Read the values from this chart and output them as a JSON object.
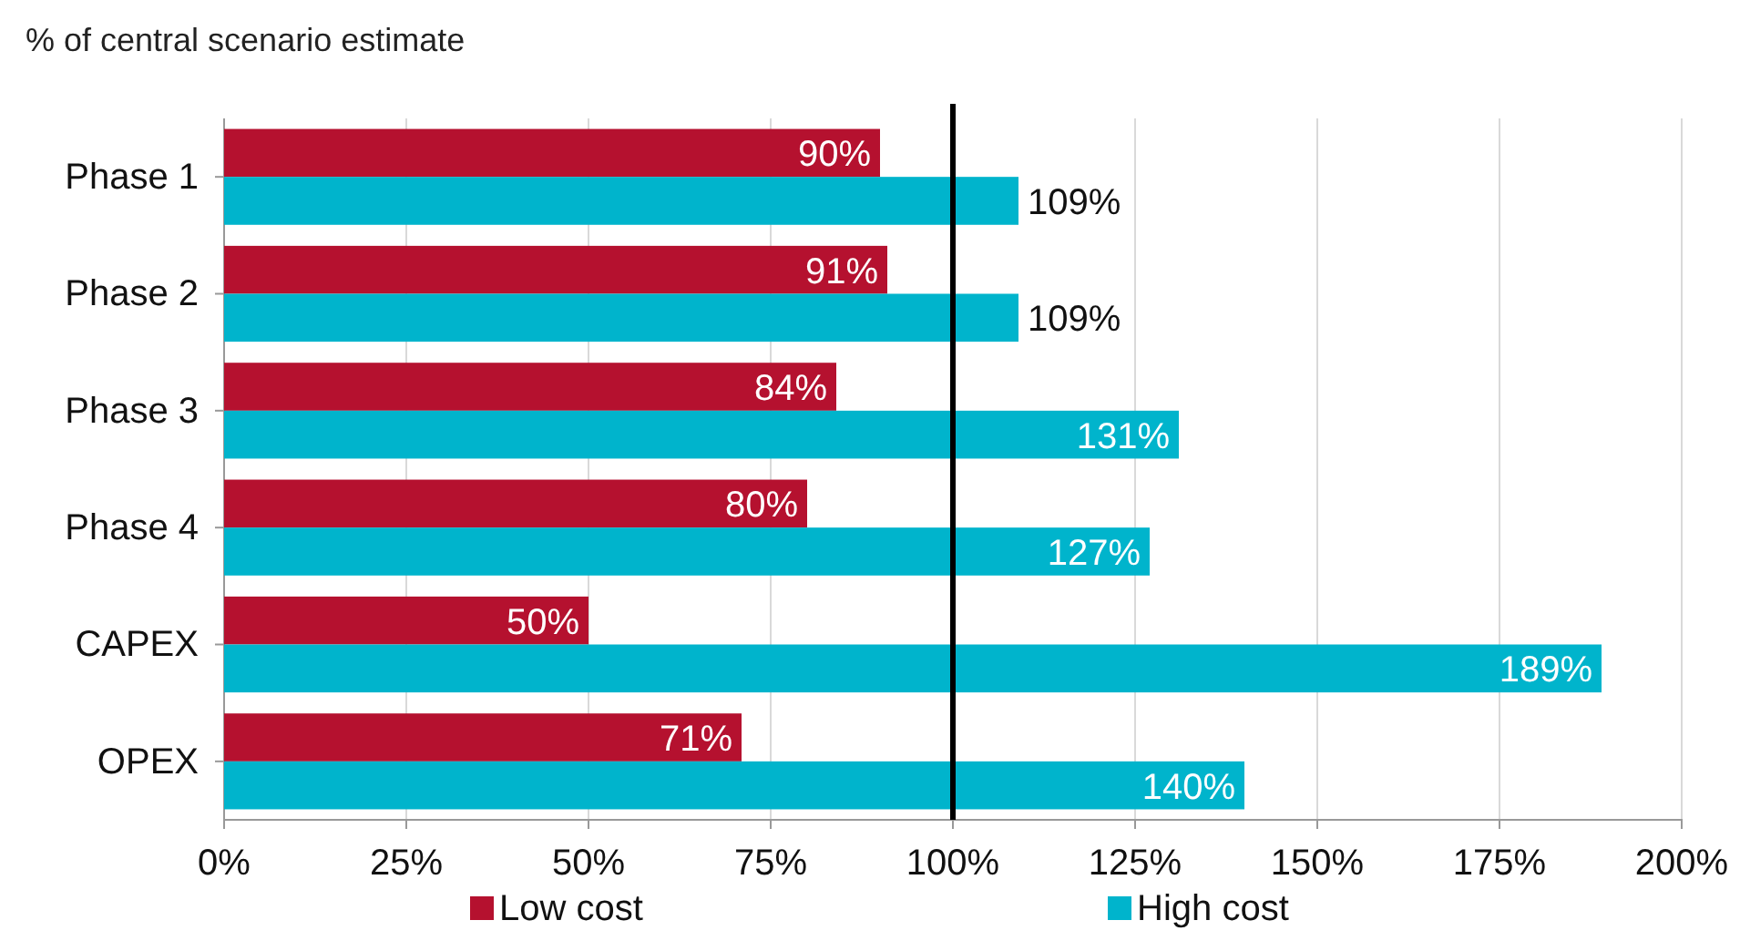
{
  "chart_data": {
    "type": "bar",
    "orientation": "horizontal",
    "ylabel": "% of central scenario estimate",
    "categories": [
      "Phase 1",
      "Phase 2",
      "Phase 3",
      "Phase 4",
      "CAPEX",
      "OPEX"
    ],
    "series": [
      {
        "name": "Low cost",
        "color": "#b5112f",
        "values": [
          90,
          91,
          84,
          80,
          50,
          71
        ],
        "value_labels": [
          "90%",
          "91%",
          "84%",
          "80%",
          "50%",
          "71%"
        ]
      },
      {
        "name": "High cost",
        "color": "#00b4cc",
        "values": [
          109,
          109,
          131,
          127,
          189,
          140
        ],
        "value_labels": [
          "109%",
          "109%",
          "131%",
          "127%",
          "189%",
          "140%"
        ]
      }
    ],
    "xlim": [
      0,
      200
    ],
    "xticks": [
      {
        "value": 0,
        "label": "0%"
      },
      {
        "value": 25,
        "label": "25%"
      },
      {
        "value": 50,
        "label": "50%"
      },
      {
        "value": 75,
        "label": "75%"
      },
      {
        "value": 100,
        "label": "100%"
      },
      {
        "value": 125,
        "label": "125%"
      },
      {
        "value": 150,
        "label": "150%"
      },
      {
        "value": 175,
        "label": "175%"
      },
      {
        "value": 200,
        "label": "200%"
      }
    ],
    "ref_lines": [
      {
        "axis": "x",
        "value": 100,
        "label": null,
        "color": "#000000"
      }
    ],
    "grid": "x",
    "legend": "bottom"
  }
}
